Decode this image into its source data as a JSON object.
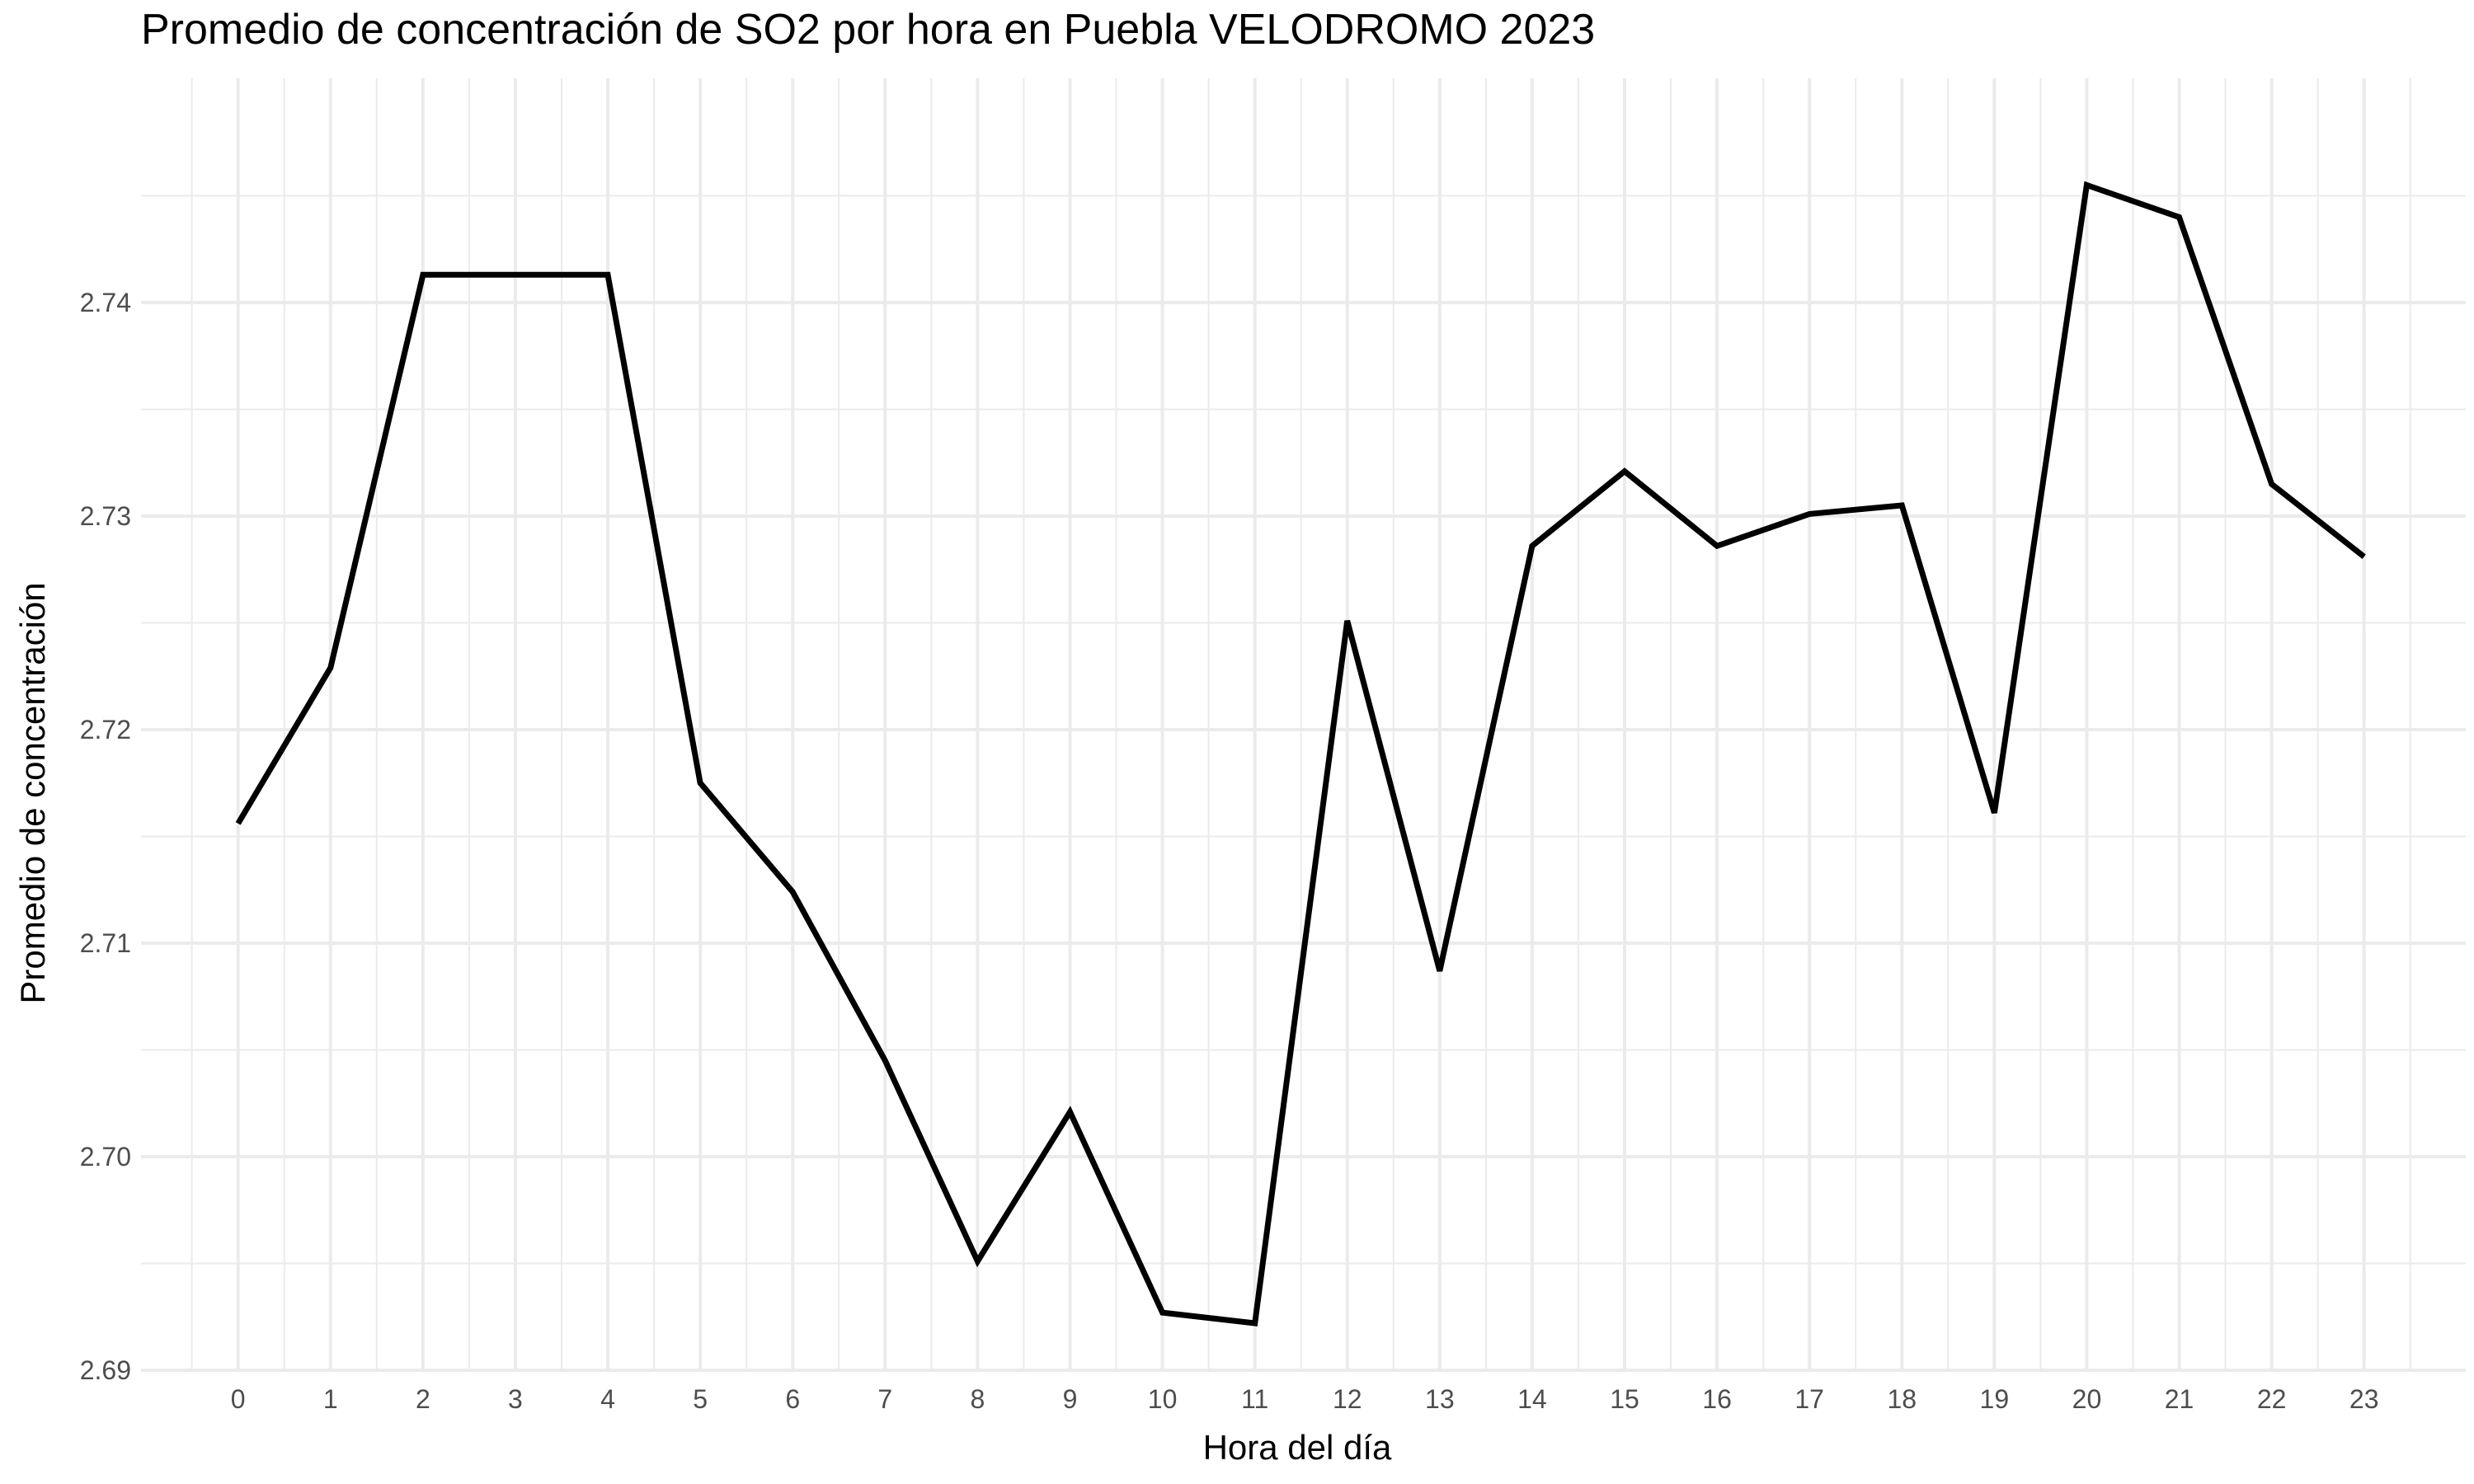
{
  "chart_data": {
    "type": "line",
    "title": "Promedio de concentración de SO2 por hora en Puebla VELODROMO 2023",
    "xlabel": "Hora del día",
    "ylabel": "Promedio de concentración",
    "x": [
      0,
      1,
      2,
      3,
      4,
      5,
      6,
      7,
      8,
      9,
      10,
      11,
      12,
      13,
      14,
      15,
      16,
      17,
      18,
      19,
      20,
      21,
      22,
      23
    ],
    "series": [
      {
        "values": [
          2.7156,
          2.7229,
          2.7413,
          2.7413,
          2.7413,
          2.7175,
          2.7124,
          2.7045,
          2.6951,
          2.7021,
          2.6927,
          2.6922,
          2.7251,
          2.7087,
          2.7286,
          2.7321,
          2.7286,
          2.7301,
          2.7305,
          2.7161,
          2.7455,
          2.744,
          2.7315,
          2.7281
        ]
      }
    ],
    "xlim": [
      -1.05,
      24.1
    ],
    "ylim": [
      2.69,
      2.7505
    ],
    "x_ticks": [
      "0",
      "1",
      "2",
      "3",
      "4",
      "5",
      "6",
      "7",
      "8",
      "9",
      "10",
      "11",
      "12",
      "13",
      "14",
      "15",
      "16",
      "17",
      "18",
      "19",
      "20",
      "21",
      "22",
      "23"
    ],
    "y_ticks": [
      "2.69",
      "2.70",
      "2.71",
      "2.72",
      "2.73",
      "2.74"
    ],
    "y_tick_values": [
      2.69,
      2.7,
      2.71,
      2.72,
      2.73,
      2.74
    ],
    "grid": true,
    "legend": "none",
    "line_color": "#000000",
    "grid_color": "#ebebeb"
  }
}
